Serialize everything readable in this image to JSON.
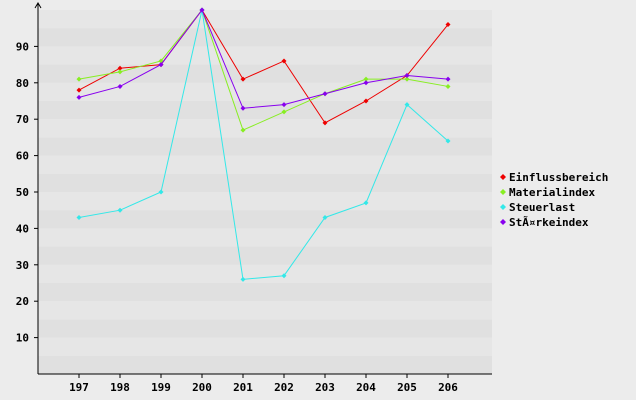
{
  "chart_data": {
    "type": "line",
    "title": "",
    "xlabel": "",
    "ylabel": "",
    "categories": [
      "197",
      "198",
      "199",
      "200",
      "201",
      "202",
      "203",
      "204",
      "205",
      "206"
    ],
    "ylim": [
      0,
      100
    ],
    "yticks": [
      10,
      20,
      30,
      40,
      50,
      60,
      70,
      80,
      90
    ],
    "grid": "horizontal alternating bands",
    "legend_position": "right",
    "series": [
      {
        "name": "Einflussbereich",
        "color": "#ee0000",
        "values": [
          78,
          84,
          85,
          100,
          81,
          86,
          69,
          75,
          82,
          96
        ]
      },
      {
        "name": "Materialindex",
        "color": "#88ee22",
        "values": [
          81,
          83,
          86,
          100,
          67,
          72,
          77,
          81,
          81,
          79
        ]
      },
      {
        "name": "Steuerlast",
        "color": "#33e8e8",
        "values": [
          43,
          45,
          50,
          100,
          26,
          27,
          43,
          47,
          74,
          64
        ]
      },
      {
        "name": "StÃ¤rkeindex",
        "color": "#8800ee",
        "values": [
          76,
          79,
          85,
          100,
          73,
          74,
          77,
          80,
          82,
          81
        ]
      }
    ]
  }
}
